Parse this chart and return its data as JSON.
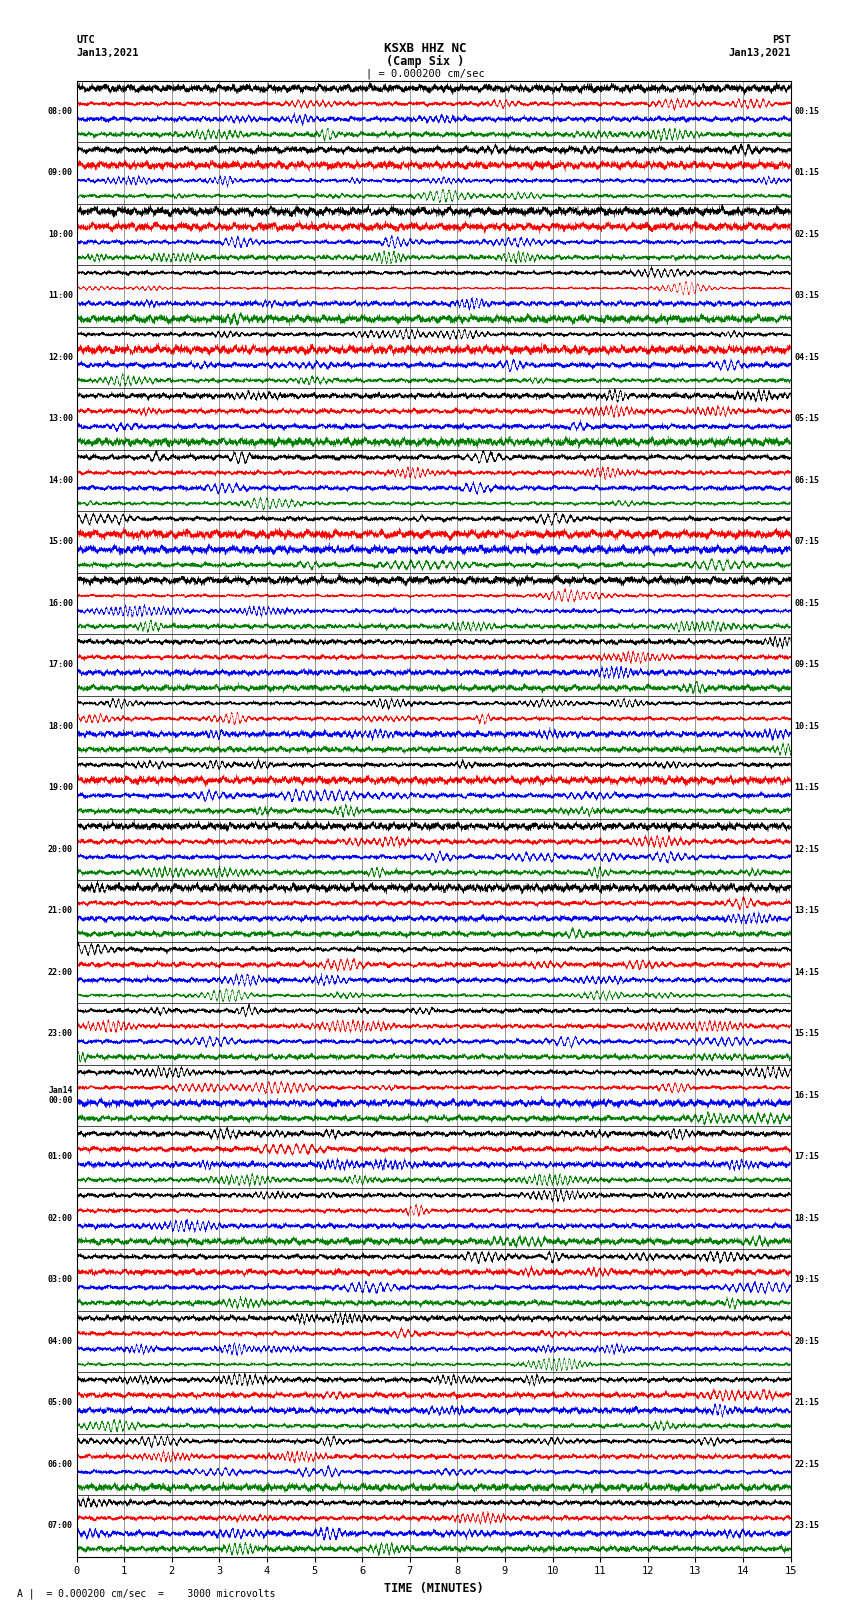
{
  "title_line1": "KSXB HHZ NC",
  "title_line2": "(Camp Six )",
  "scale_text": "| = 0.000200 cm/sec",
  "left_label_top": "UTC",
  "left_label_date": "Jan13,2021",
  "right_label_top": "PST",
  "right_label_date": "Jan13,2021",
  "bottom_label": "TIME (MINUTES)",
  "bottom_note": "A |  = 0.000200 cm/sec  =    3000 microvolts",
  "left_times": [
    "08:00",
    "09:00",
    "10:00",
    "11:00",
    "12:00",
    "13:00",
    "14:00",
    "15:00",
    "16:00",
    "17:00",
    "18:00",
    "19:00",
    "20:00",
    "21:00",
    "22:00",
    "23:00",
    "Jan14\n00:00",
    "01:00",
    "02:00",
    "03:00",
    "04:00",
    "05:00",
    "06:00",
    "07:00"
  ],
  "right_times": [
    "00:15",
    "01:15",
    "02:15",
    "03:15",
    "04:15",
    "05:15",
    "06:15",
    "07:15",
    "08:15",
    "09:15",
    "10:15",
    "11:15",
    "12:15",
    "13:15",
    "14:15",
    "15:15",
    "16:15",
    "17:15",
    "18:15",
    "19:15",
    "20:15",
    "21:15",
    "22:15",
    "23:15"
  ],
  "n_rows": 24,
  "n_cols": 4,
  "colors": [
    "black",
    "red",
    "blue",
    "green"
  ],
  "fig_width": 8.5,
  "fig_height": 16.13,
  "xlim": [
    0,
    15
  ],
  "xticks": [
    0,
    1,
    2,
    3,
    4,
    5,
    6,
    7,
    8,
    9,
    10,
    11,
    12,
    13,
    14,
    15
  ],
  "bg_color": "white",
  "amplitude": 0.45,
  "freq_base": 60.0,
  "noise_scale": 0.5,
  "n_points": 8000
}
